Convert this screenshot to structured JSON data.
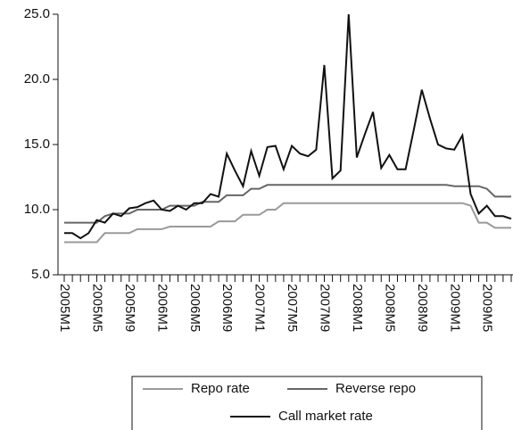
{
  "chart_data": {
    "type": "line",
    "categories": [
      "2005M1",
      null,
      null,
      null,
      "2005M5",
      null,
      null,
      null,
      "2005M9",
      null,
      null,
      null,
      "2006M1",
      null,
      null,
      null,
      "2006M5",
      null,
      null,
      null,
      "2006M9",
      null,
      null,
      null,
      "2007M1",
      null,
      null,
      null,
      "2007M5",
      null,
      null,
      null,
      "2007M9",
      null,
      null,
      null,
      "2008M1",
      null,
      null,
      null,
      "2008M5",
      null,
      null,
      null,
      "2008M9",
      null,
      null,
      null,
      "2009M1",
      null,
      null,
      null,
      "2009M5",
      null,
      null,
      null
    ],
    "series": [
      {
        "name": "Repo rate",
        "color": "#9a9a9a",
        "values": [
          7.5,
          7.5,
          7.5,
          7.5,
          7.5,
          8.2,
          8.2,
          8.2,
          8.2,
          8.5,
          8.5,
          8.5,
          8.5,
          8.7,
          8.7,
          8.7,
          8.7,
          8.7,
          8.7,
          9.1,
          9.1,
          9.1,
          9.6,
          9.6,
          9.6,
          10.0,
          10.0,
          10.5,
          10.5,
          10.5,
          10.5,
          10.5,
          10.5,
          10.5,
          10.5,
          10.5,
          10.5,
          10.5,
          10.5,
          10.5,
          10.5,
          10.5,
          10.5,
          10.5,
          10.5,
          10.5,
          10.5,
          10.5,
          10.5,
          10.5,
          10.3,
          9.0,
          9.0,
          8.6,
          8.6,
          8.6
        ]
      },
      {
        "name": "Reverse repo",
        "color": "#666666",
        "values": [
          9.0,
          9.0,
          9.0,
          9.0,
          9.0,
          9.5,
          9.7,
          9.7,
          9.7,
          10.0,
          10.0,
          10.0,
          10.0,
          10.3,
          10.3,
          10.3,
          10.3,
          10.6,
          10.6,
          10.6,
          11.1,
          11.1,
          11.1,
          11.6,
          11.6,
          11.9,
          11.9,
          11.9,
          11.9,
          11.9,
          11.9,
          11.9,
          11.9,
          11.9,
          11.9,
          11.9,
          11.9,
          11.9,
          11.9,
          11.9,
          11.9,
          11.9,
          11.9,
          11.9,
          11.9,
          11.9,
          11.9,
          11.9,
          11.8,
          11.8,
          11.8,
          11.8,
          11.6,
          11.0,
          11.0,
          11.0
        ]
      },
      {
        "name": "Call market rate",
        "color": "#111111",
        "values": [
          8.2,
          8.2,
          7.8,
          8.2,
          9.2,
          9.0,
          9.7,
          9.5,
          10.1,
          10.2,
          10.5,
          10.7,
          10.0,
          9.9,
          10.3,
          10.0,
          10.5,
          10.5,
          11.2,
          11.0,
          14.3,
          13.0,
          11.8,
          14.5,
          12.6,
          14.8,
          14.9,
          13.1,
          14.9,
          14.3,
          14.1,
          14.6,
          21.1,
          12.4,
          13.0,
          25.0,
          14.0,
          15.8,
          17.5,
          13.2,
          14.2,
          13.1,
          13.1,
          16.1,
          19.2,
          17.0,
          15.0,
          14.7,
          14.6,
          15.7,
          11.2,
          9.7,
          10.3,
          9.5,
          9.5,
          9.3
        ]
      }
    ],
    "ylim": [
      5,
      25
    ],
    "yticks": [
      {
        "value": 5,
        "label": "5.0"
      },
      {
        "value": 10,
        "label": "10.0"
      },
      {
        "value": 15,
        "label": "15.0"
      },
      {
        "value": 20,
        "label": "20.0"
      },
      {
        "value": 25,
        "label": "25.0"
      }
    ],
    "grid": false
  }
}
